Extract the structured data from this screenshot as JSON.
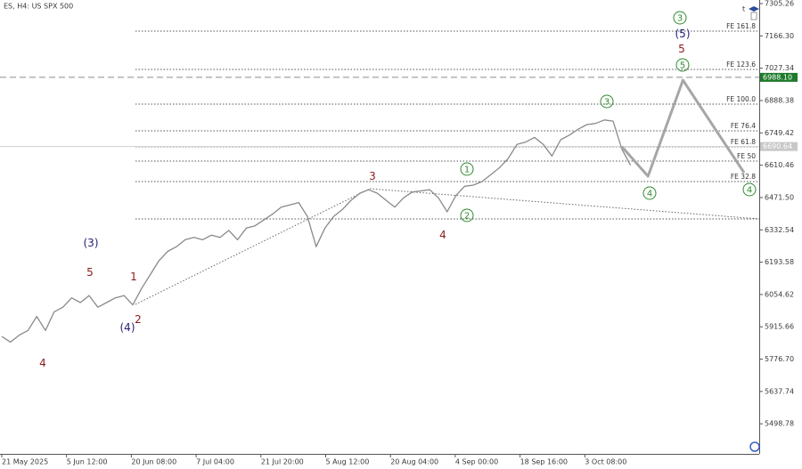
{
  "chart_data": {
    "type": "line",
    "title": "ES, H4:  US SPX 500",
    "xtick_labels": [
      "21 May 2025",
      "5 Jun 12:00",
      "20 Jun 08:00",
      "7 Jul 04:00",
      "21 Jul 20:00",
      "5 Aug 12:00",
      "20 Aug 04:00",
      "4 Sep 00:00",
      "18 Sep 16:00",
      "3 Oct 08:00"
    ],
    "ylim": [
      5369.5,
      7320.6
    ],
    "yticks": [
      7305.26,
      {
        "value": 7166.3,
        "label": "7166.30"
      },
      7027.34,
      6888.38,
      6749.42,
      6610.46,
      {
        "value": 6471.5,
        "label": "6471.50"
      },
      6332.54,
      6193.58,
      6054.62,
      5915.66,
      {
        "value": 5776.7,
        "label": "5776.70"
      },
      5637.74,
      5498.78
    ],
    "series": [
      {
        "color": "#8a8a8a",
        "values": [
          5874,
          5850,
          5880,
          5900,
          5960,
          5900,
          5980,
          6000,
          6040,
          6020,
          6050,
          6000,
          6020,
          6040,
          6050,
          6010,
          6080,
          6140,
          6200,
          6240,
          6260,
          6290,
          6300,
          6290,
          6310,
          6300,
          6330,
          6290,
          6340,
          6350,
          6375,
          6400,
          6430,
          6440,
          6450,
          6390,
          6260,
          6340,
          6390,
          6420,
          6460,
          6490,
          6505,
          6490,
          6460,
          6430,
          6470,
          6495,
          6500,
          6505,
          6470,
          6410,
          6480,
          6520,
          6525,
          6540,
          6570,
          6600,
          6640,
          6700,
          6710,
          6730,
          6700,
          6650,
          6720,
          6740,
          6765,
          6785,
          6790,
          6805,
          6800,
          6680,
          6610
        ]
      },
      {
        "color": "#a6a6a6",
        "x": [
          71,
          74,
          78,
          85
        ],
        "values": [
          6690,
          6563,
          6976,
          6578
        ]
      }
    ],
    "price_labels": [
      {
        "value": 6988.1,
        "label": "6988.10",
        "color": "#1d7a2a"
      },
      {
        "value": 6690.64,
        "label": "6690.64",
        "color": "#c8c8c8"
      }
    ],
    "fib_levels": [
      {
        "label": "FE 161.8",
        "value": 7186.7
      },
      {
        "label": "FE 123.6",
        "value": 7022.2
      },
      {
        "label": "FE 100.0",
        "value": 6873.0
      },
      {
        "label": "FE 76.4",
        "value": 6758.2
      },
      {
        "label": "FE 61.8",
        "value": 6689.4
      },
      {
        "label": "FE 50",
        "value": 6628.2
      },
      {
        "label": "FE 32.8",
        "value": 6540.2
      },
      {
        "value": 6379.5
      }
    ],
    "annotations": [
      {
        "text": "(3)",
        "color": "#1f1f78"
      },
      {
        "text": "5",
        "color": "#8b1a1a"
      },
      {
        "text": "4",
        "color": "#8b1a1a"
      },
      {
        "text": "1",
        "color": "#8b1a1a"
      },
      {
        "text": "2",
        "color": "#8b1a1a"
      },
      {
        "text": "(4)",
        "color": "#1f1f78"
      },
      {
        "text": "3",
        "color": "#8b1a1a"
      },
      {
        "text": "4",
        "color": "#8b1a1a"
      },
      {
        "text": "1",
        "color": "#2e8b2e",
        "circled": true
      },
      {
        "text": "2",
        "color": "#2e8b2e",
        "circled": true
      },
      {
        "text": "3",
        "color": "#2e8b2e",
        "circled": true
      },
      {
        "text": "4",
        "color": "#2e8b2e",
        "circled": true
      },
      {
        "text": "3",
        "color": "#2e8b2e",
        "circled": true
      },
      {
        "text": "(5)",
        "color": "#1f1f78"
      },
      {
        "text": "5",
        "color": "#8b1a1a"
      },
      {
        "text": "5",
        "color": "#2e8b2e",
        "circled": true
      },
      {
        "text": "4",
        "color": "#2e8b2e",
        "circled": true
      }
    ]
  }
}
